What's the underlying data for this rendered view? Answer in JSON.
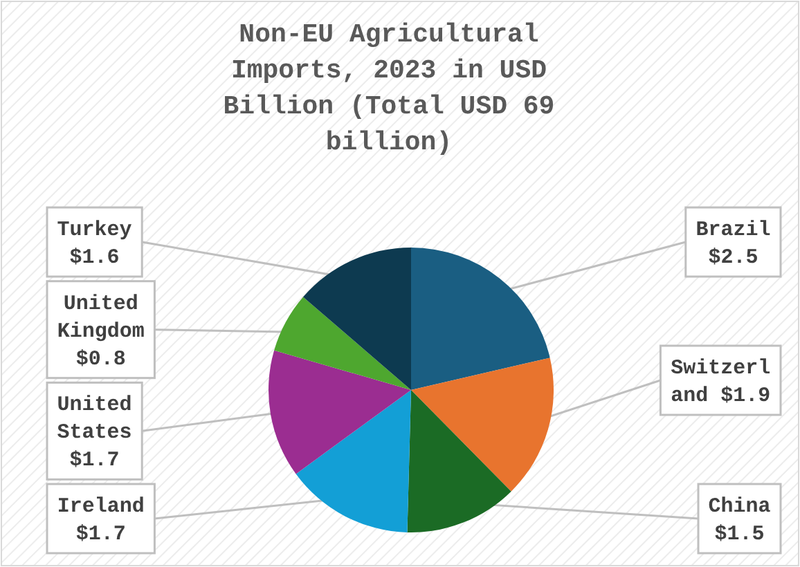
{
  "chart_data": {
    "type": "pie",
    "title": "Non-EU Agricultural Imports, 2023 in USD Billion (Total USD 69 billion)",
    "categories": [
      "Brazil",
      "Switzerland",
      "China",
      "Ireland",
      "United States",
      "United Kingdom",
      "Turkey"
    ],
    "values": [
      2.5,
      1.9,
      1.5,
      1.7,
      1.7,
      0.8,
      1.6
    ],
    "value_labels": [
      "$2.5",
      "$1.9",
      "$1.5",
      "$1.7",
      "$1.7",
      "$0.8",
      "$1.6"
    ],
    "colors": [
      "#1a5e82",
      "#e8742e",
      "#1b6b25",
      "#139fd6",
      "#9b2d91",
      "#4ea72f",
      "#0d3a50"
    ]
  }
}
